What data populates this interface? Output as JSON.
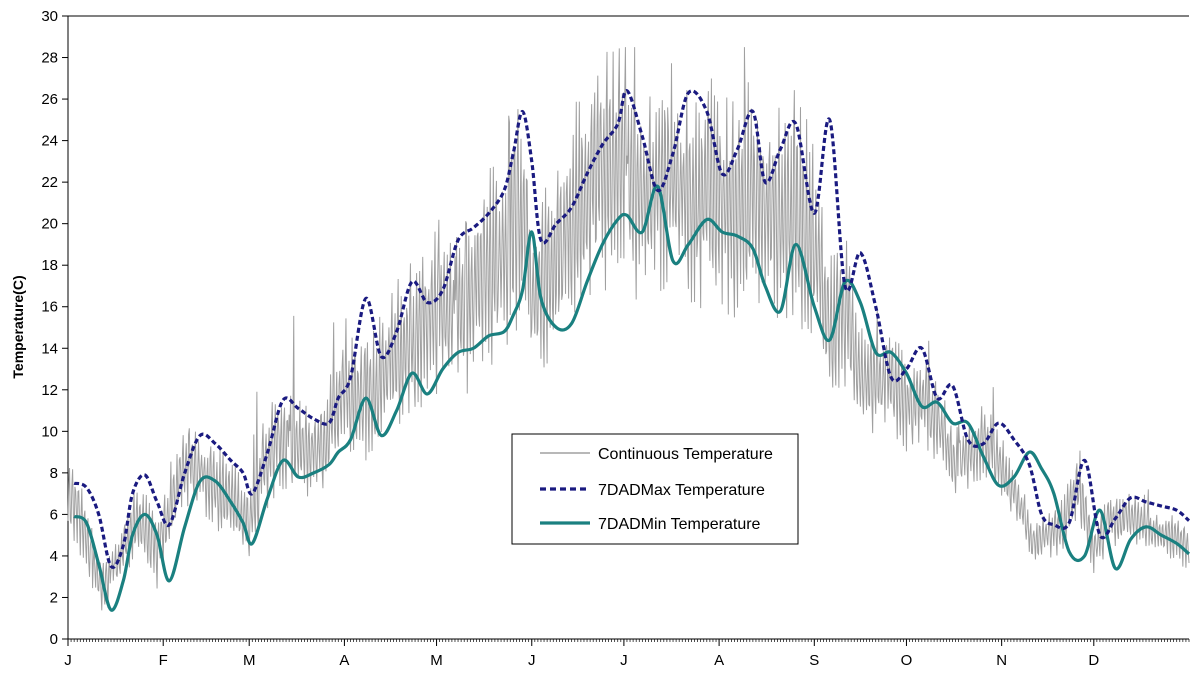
{
  "chart_data": {
    "type": "line",
    "title": "",
    "xlabel": "",
    "ylabel": "Temperature(C)",
    "ylim": [
      0,
      30
    ],
    "ytick_step": 2,
    "month_ticks": [
      "J",
      "F",
      "M",
      "A",
      "M",
      "J",
      "J",
      "A",
      "S",
      "O",
      "N",
      "D"
    ],
    "month_start_days": [
      1,
      32,
      60,
      91,
      121,
      152,
      182,
      213,
      244,
      274,
      305,
      335
    ],
    "x_range_days": [
      1,
      366
    ],
    "grid": false,
    "legend_position": "center-right",
    "series": [
      {
        "name": "Continuous Temperature",
        "style": "thin-noisy",
        "color": "#a0a0a0",
        "x": [
          1,
          4,
          8,
          12,
          15,
          20,
          25,
          30,
          35,
          40,
          45,
          50,
          55,
          60,
          65,
          70,
          75,
          80,
          85,
          91,
          96,
          101,
          106,
          111,
          116,
          121,
          126,
          131,
          136,
          141,
          146,
          149,
          152,
          157,
          162,
          167,
          172,
          177,
          182,
          186,
          190,
          195,
          200,
          205,
          210,
          213,
          218,
          223,
          228,
          233,
          238,
          244,
          249,
          254,
          259,
          264,
          269,
          274,
          279,
          284,
          289,
          294,
          299,
          305,
          310,
          315,
          320,
          325,
          330,
          335,
          340,
          345,
          350,
          355,
          360,
          366
        ],
        "mid": [
          6.8,
          6.2,
          4.2,
          2.4,
          2.8,
          4.8,
          5.8,
          4.0,
          6.8,
          8.6,
          8.0,
          7.2,
          6.6,
          5.6,
          8.6,
          9.6,
          9.2,
          9.0,
          9.6,
          12.5,
          11.5,
          11.8,
          13.6,
          14.0,
          14.8,
          15.8,
          15.6,
          16.0,
          17.4,
          18.0,
          20.4,
          21.0,
          16.6,
          17.6,
          18.8,
          21.0,
          22.4,
          22.8,
          23.0,
          21.6,
          21.4,
          22.6,
          21.6,
          21.0,
          22.0,
          21.2,
          20.6,
          21.4,
          20.6,
          20.4,
          20.8,
          19.0,
          15.0,
          15.8,
          13.0,
          12.2,
          12.6,
          11.2,
          11.6,
          10.6,
          8.6,
          8.8,
          9.6,
          8.2,
          7.0,
          4.6,
          5.0,
          5.4,
          7.6,
          4.2,
          5.6,
          5.8,
          5.8,
          5.2,
          4.8,
          4.6
        ],
        "amp": [
          1.4,
          1.4,
          1.2,
          1.0,
          1.0,
          1.2,
          1.3,
          1.2,
          1.6,
          1.6,
          1.5,
          1.5,
          1.4,
          1.4,
          1.8,
          2.0,
          1.8,
          1.6,
          1.8,
          2.4,
          2.2,
          2.4,
          2.6,
          2.8,
          3.0,
          3.0,
          2.8,
          3.2,
          3.6,
          3.8,
          4.4,
          4.6,
          3.0,
          3.2,
          3.6,
          3.8,
          4.2,
          4.4,
          4.6,
          4.0,
          4.0,
          4.2,
          4.0,
          3.8,
          4.2,
          4.0,
          3.8,
          4.2,
          3.8,
          3.8,
          4.2,
          3.6,
          2.6,
          2.8,
          2.0,
          1.8,
          2.0,
          1.6,
          1.8,
          1.6,
          1.2,
          1.2,
          1.4,
          1.2,
          1.0,
          0.8,
          0.9,
          1.0,
          1.4,
          0.9,
          1.0,
          1.0,
          1.0,
          0.9,
          0.9,
          0.9
        ]
      },
      {
        "name": "7DADMax Temperature",
        "style": "dashed",
        "color": "#1a1a80",
        "x": [
          3,
          7,
          11,
          15,
          19,
          22,
          26,
          30,
          34,
          39,
          44,
          49,
          54,
          58,
          61,
          66,
          71,
          76,
          81,
          86,
          89,
          93,
          98,
          103,
          108,
          113,
          118,
          123,
          128,
          133,
          138,
          143,
          146,
          149,
          152,
          155,
          160,
          165,
          170,
          175,
          180,
          183,
          188,
          193,
          198,
          203,
          209,
          214,
          219,
          224,
          228,
          233,
          238,
          244,
          249,
          254,
          259,
          264,
          269,
          274,
          279,
          284,
          289,
          294,
          299,
          304,
          309,
          314,
          318,
          322,
          327,
          332,
          337,
          342,
          347,
          352,
          357,
          362,
          366
        ],
        "y": [
          7.5,
          7.3,
          6.0,
          3.5,
          4.5,
          7.0,
          7.9,
          6.6,
          5.5,
          8.0,
          9.8,
          9.4,
          8.6,
          8.0,
          7.0,
          9.0,
          11.5,
          11.1,
          10.6,
          10.4,
          11.6,
          12.6,
          16.4,
          13.6,
          14.8,
          17.2,
          16.2,
          16.8,
          19.2,
          19.8,
          20.5,
          21.6,
          23.4,
          25.4,
          23.0,
          19.2,
          20.0,
          20.8,
          22.4,
          23.8,
          24.8,
          26.4,
          24.2,
          21.6,
          23.4,
          26.3,
          25.4,
          22.4,
          23.6,
          25.4,
          22.0,
          23.6,
          24.8,
          20.5,
          25.0,
          17.0,
          18.6,
          16.0,
          12.6,
          13.0,
          14.0,
          11.6,
          12.2,
          9.6,
          9.4,
          10.4,
          9.6,
          8.4,
          6.0,
          5.5,
          5.6,
          8.6,
          5.0,
          5.8,
          6.8,
          6.6,
          6.4,
          6.2,
          5.7
        ]
      },
      {
        "name": "7DADMin Temperature",
        "style": "solid-thick",
        "color": "#1a8080",
        "x": [
          3,
          7,
          11,
          15,
          19,
          22,
          26,
          30,
          34,
          39,
          44,
          49,
          54,
          58,
          61,
          66,
          71,
          76,
          81,
          86,
          89,
          93,
          98,
          103,
          108,
          113,
          118,
          123,
          128,
          133,
          138,
          143,
          146,
          149,
          152,
          155,
          160,
          165,
          170,
          175,
          180,
          183,
          188,
          193,
          198,
          203,
          209,
          214,
          219,
          224,
          228,
          233,
          238,
          244,
          249,
          254,
          259,
          264,
          269,
          274,
          279,
          284,
          289,
          294,
          299,
          304,
          309,
          314,
          318,
          322,
          327,
          332,
          337,
          342,
          347,
          352,
          357,
          362,
          366
        ],
        "y": [
          5.9,
          5.6,
          3.6,
          1.4,
          2.8,
          5.0,
          6.0,
          5.0,
          2.8,
          5.4,
          7.6,
          7.6,
          6.6,
          5.6,
          4.6,
          6.8,
          8.6,
          7.8,
          8.0,
          8.4,
          9.0,
          9.6,
          11.6,
          9.8,
          11.0,
          12.8,
          11.8,
          13.0,
          13.8,
          14.0,
          14.6,
          14.8,
          15.6,
          16.8,
          19.6,
          16.4,
          15.0,
          15.2,
          17.2,
          19.0,
          20.2,
          20.4,
          19.6,
          21.8,
          18.2,
          19.0,
          20.2,
          19.6,
          19.4,
          18.8,
          17.0,
          15.8,
          19.0,
          16.0,
          14.4,
          17.2,
          16.2,
          13.8,
          13.8,
          12.8,
          11.2,
          11.4,
          10.4,
          10.4,
          8.8,
          7.4,
          7.8,
          9.0,
          8.2,
          7.0,
          4.2,
          4.0,
          6.2,
          3.4,
          4.8,
          5.4,
          5.0,
          4.6,
          4.1
        ]
      }
    ]
  }
}
